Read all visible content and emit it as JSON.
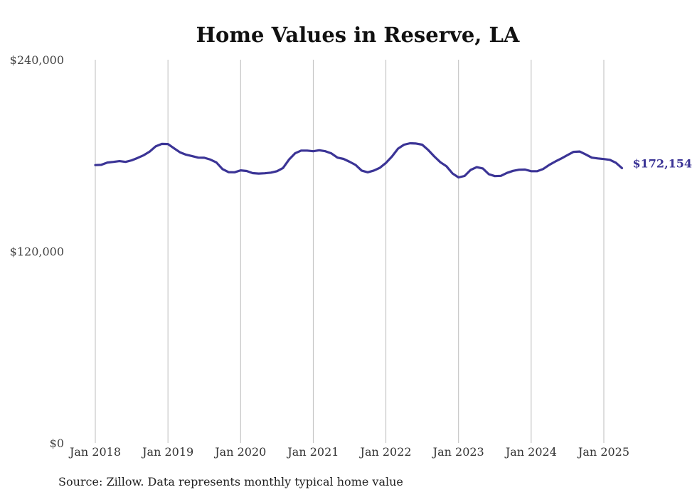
{
  "chart_data": {
    "type": "line",
    "title": "Home Values in Reserve, LA",
    "source": "Source: Zillow. Data represents monthly typical home value",
    "xlabel": "",
    "ylabel": "",
    "ylim": [
      0,
      240000
    ],
    "y_ticks": [
      {
        "value": 0,
        "label": "$0"
      },
      {
        "value": 120000,
        "label": "$120,000"
      },
      {
        "value": 240000,
        "label": "$240,000"
      }
    ],
    "x_ticks": [
      {
        "value": 2018.0,
        "label": "Jan 2018"
      },
      {
        "value": 2019.0,
        "label": "Jan 2019"
      },
      {
        "value": 2020.0,
        "label": "Jan 2020"
      },
      {
        "value": 2021.0,
        "label": "Jan 2021"
      },
      {
        "value": 2022.0,
        "label": "Jan 2022"
      },
      {
        "value": 2023.0,
        "label": "Jan 2023"
      },
      {
        "value": 2024.0,
        "label": "Jan 2024"
      },
      {
        "value": 2025.0,
        "label": "Jan 2025"
      }
    ],
    "xlim": [
      2018.0,
      2025.25
    ],
    "grid": "vertical",
    "line_color": "#3b3496",
    "end_label": "$172,154",
    "series": [
      {
        "x": [
          2018.0,
          2018.0833,
          2018.1667,
          2018.25,
          2018.3333,
          2018.4167,
          2018.5,
          2018.5833,
          2018.6667,
          2018.75,
          2018.8333,
          2018.9167,
          2019.0,
          2019.0833,
          2019.1667,
          2019.25,
          2019.3333,
          2019.4167,
          2019.5,
          2019.5833,
          2019.6667,
          2019.75,
          2019.8333,
          2019.9167,
          2020.0,
          2020.0833,
          2020.1667,
          2020.25,
          2020.3333,
          2020.4167,
          2020.5,
          2020.5833,
          2020.6667,
          2020.75,
          2020.8333,
          2020.9167,
          2021.0,
          2021.0833,
          2021.1667,
          2021.25,
          2021.3333,
          2021.4167,
          2021.5,
          2021.5833,
          2021.6667,
          2021.75,
          2021.8333,
          2021.9167,
          2022.0,
          2022.0833,
          2022.1667,
          2022.25,
          2022.3333,
          2022.4167,
          2022.5,
          2022.5833,
          2022.6667,
          2022.75,
          2022.8333,
          2022.9167,
          2023.0,
          2023.0833,
          2023.1667,
          2023.25,
          2023.3333,
          2023.4167,
          2023.5,
          2023.5833,
          2023.6667,
          2023.75,
          2023.8333,
          2023.9167,
          2024.0,
          2024.0833,
          2024.1667,
          2024.25,
          2024.3333,
          2024.4167,
          2024.5,
          2024.5833,
          2024.6667,
          2024.75,
          2024.8333,
          2024.9167,
          2025.0,
          2025.0833,
          2025.1667,
          2025.25
        ],
        "values": [
          174000,
          174200,
          175600,
          176000,
          176500,
          176000,
          177000,
          178500,
          180200,
          182500,
          185800,
          187300,
          187200,
          184500,
          182000,
          180500,
          179600,
          178700,
          178600,
          177500,
          175700,
          171500,
          169600,
          169500,
          170700,
          170300,
          169000,
          168700,
          168900,
          169300,
          170200,
          172200,
          177500,
          181400,
          183100,
          183100,
          182700,
          183300,
          182700,
          181300,
          178700,
          177900,
          176100,
          174100,
          170600,
          169500,
          170600,
          172300,
          175400,
          179400,
          184300,
          186800,
          187700,
          187500,
          186800,
          183400,
          179400,
          175800,
          173300,
          168800,
          166300,
          167200,
          171000,
          172700,
          171900,
          168300,
          167100,
          167300,
          169100,
          170400,
          171100,
          171200,
          170200,
          170200,
          171600,
          174200,
          176300,
          178200,
          180300,
          182300,
          182500,
          180700,
          178700,
          178200,
          177800,
          177300,
          175500,
          172154
        ]
      }
    ]
  }
}
